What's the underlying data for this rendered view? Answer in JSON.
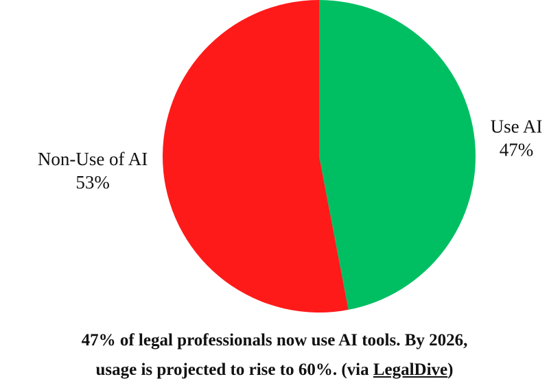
{
  "chart_data": {
    "type": "pie",
    "categories": [
      "Use AI",
      "Non-Use of AI"
    ],
    "values": [
      47,
      53
    ],
    "value_labels": [
      "47%",
      "53%"
    ],
    "colors": [
      "#00bf63",
      "#ff1a1a"
    ]
  },
  "caption": {
    "line1": "47% of legal professionals now use AI tools. By 2026,",
    "line2": "usage is projected to rise to 60%. (via",
    "link": "LegalDive",
    "end": ")"
  }
}
